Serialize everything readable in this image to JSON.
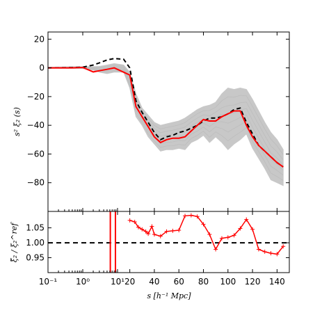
{
  "chart_data": [
    {
      "type": "line",
      "panel": "main",
      "title": "",
      "xlabel": "",
      "ylabel": "s² ξ₂ (s)",
      "ylim": [
        -100,
        25
      ],
      "grid": false,
      "y_ticks": [
        20,
        0,
        -20,
        -40,
        -60,
        -80
      ],
      "y_tick_labels": [
        "20",
        "0",
        "−20",
        "−40",
        "−60",
        "−80"
      ],
      "series": [
        {
          "style": "band",
          "color": "#c8c8c8",
          "x": [
            0.1,
            0.5,
            1,
            2,
            3,
            5,
            8,
            15,
            20,
            25,
            30,
            35,
            40,
            45,
            50,
            55,
            60,
            65,
            70,
            75,
            80,
            85,
            90,
            95,
            100,
            105,
            110,
            115,
            120,
            125,
            130,
            135,
            140,
            145
          ],
          "upper": [
            0.5,
            0.8,
            0.8,
            0.8,
            1,
            2,
            3,
            2,
            -3,
            -18,
            -28,
            -33,
            -38,
            -40,
            -39,
            -38,
            -37,
            -35,
            -32,
            -29,
            -27,
            -26,
            -24,
            -18,
            -14,
            -15,
            -14,
            -15,
            -22,
            -30,
            -38,
            -45,
            -50,
            -57
          ],
          "lower": [
            -0.3,
            -0.3,
            -0.5,
            -1.5,
            -3,
            -4,
            -3,
            -3,
            -14,
            -34,
            -40,
            -48,
            -53,
            -58,
            -57,
            -57,
            -56,
            -57,
            -52,
            -50,
            -47,
            -52,
            -48,
            -52,
            -57,
            -53,
            -50,
            -46,
            -56,
            -63,
            -70,
            -78,
            -80,
            -82
          ]
        },
        {
          "style": "dashed",
          "color": "#000000",
          "x": [
            0.1,
            0.3,
            0.5,
            1,
            2,
            3,
            5,
            8,
            15,
            20,
            25,
            30,
            35,
            40,
            45,
            50,
            55,
            60,
            65,
            70,
            75,
            80,
            85,
            90,
            95,
            100,
            105,
            110,
            115,
            120,
            125,
            130,
            135,
            140,
            145
          ],
          "values": [
            0,
            0.1,
            0.2,
            0.5,
            2,
            3.5,
            5.5,
            6.5,
            6,
            0,
            -23,
            -31,
            -38,
            -45,
            -50,
            -48,
            -47,
            -45,
            -44,
            -42,
            -40,
            -37,
            -35,
            -35,
            -34,
            -32,
            -29,
            -28,
            -38,
            -46,
            -54,
            -58,
            -62,
            -66,
            -69
          ]
        },
        {
          "style": "solid",
          "color": "#ff0000",
          "x": [
            0.1,
            0.3,
            0.5,
            1,
            1.5,
            2,
            3,
            5,
            8,
            15,
            20,
            25,
            30,
            35,
            40,
            45,
            50,
            55,
            60,
            65,
            70,
            75,
            80,
            85,
            90,
            95,
            100,
            105,
            110,
            115,
            120,
            125,
            130,
            135,
            140,
            145
          ],
          "values": [
            0,
            0,
            0,
            0.3,
            -1.5,
            -2.8,
            -2,
            -1,
            0,
            -3,
            -5,
            -27,
            -34,
            -41,
            -48,
            -52,
            -50,
            -49,
            -49,
            -48,
            -44,
            -40,
            -36,
            -37,
            -37,
            -34,
            -32,
            -30,
            -30,
            -40,
            -48,
            -54,
            -58,
            -62,
            -66,
            -69
          ]
        }
      ]
    },
    {
      "type": "line",
      "panel": "ratio",
      "title": "",
      "xlabel": "s [h⁻¹ Mpc]",
      "ylabel": "ξ̃₂ / ξ₂^ref",
      "ylim": [
        0.9,
        1.105
      ],
      "grid": false,
      "y_ticks": [
        1.05,
        1.0,
        0.95
      ],
      "y_tick_labels": [
        "1.05",
        "1.00",
        "0.95"
      ],
      "reference_line": 1.0,
      "x_ticks": [
        0.1,
        1,
        10,
        20,
        40,
        60,
        80,
        100,
        120,
        140
      ],
      "x_tick_labels": [
        "10⁻¹",
        "10⁰",
        "10¹",
        "20",
        "40",
        "60",
        "80",
        "100",
        "120",
        "140"
      ],
      "series": [
        {
          "style": "solid",
          "color": "#ff0000",
          "x": [
            20,
            24,
            27,
            30,
            33,
            35,
            38,
            40,
            45,
            50,
            55,
            60,
            65,
            70,
            75,
            80,
            85,
            90,
            95,
            100,
            105,
            110,
            115,
            120,
            125,
            130,
            135,
            140,
            145
          ],
          "values": [
            1.075,
            1.07,
            1.052,
            1.045,
            1.038,
            1.03,
            1.055,
            1.028,
            1.022,
            1.038,
            1.04,
            1.042,
            1.09,
            1.092,
            1.088,
            1.062,
            1.028,
            0.978,
            1.015,
            1.018,
            1.025,
            1.048,
            1.078,
            1.045,
            0.978,
            0.97,
            0.965,
            0.962,
            0.988
          ]
        }
      ],
      "spikes_x": [
        6.2,
        8.7
      ]
    }
  ]
}
